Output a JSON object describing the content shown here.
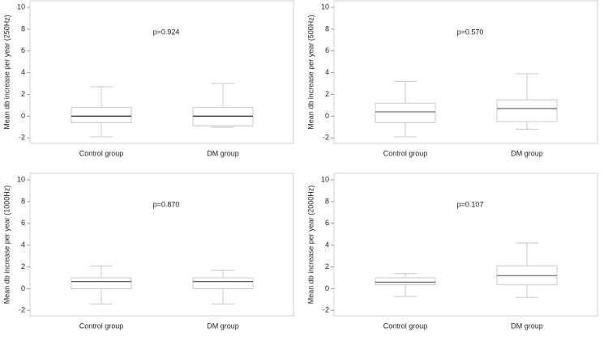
{
  "chart_data": [
    {
      "type": "box",
      "y_label": "Mean db increase per year (250Hz)",
      "annotation": "p=0.924",
      "categories": [
        "Control group",
        "DM group"
      ],
      "boxes": [
        {
          "min": -1.9,
          "q1": -0.6,
          "median": 0,
          "q3": 0.8,
          "max": 2.7
        },
        {
          "min": -1.0,
          "q1": -0.9,
          "median": 0,
          "q3": 0.8,
          "max": 3.0
        }
      ],
      "ylim": [
        -2.5,
        10.6
      ],
      "yticks": [
        -2,
        0,
        2,
        4,
        6,
        8,
        10
      ],
      "box_color": "#c8c8c8",
      "median_color": "#222222"
    },
    {
      "type": "box",
      "y_label": "Mean db increase per year (500Hz)",
      "annotation": "p=0.570",
      "categories": [
        "Control group",
        "DM group"
      ],
      "boxes": [
        {
          "min": -1.9,
          "q1": -0.6,
          "median": 0.4,
          "q3": 1.2,
          "max": 3.2
        },
        {
          "min": -1.2,
          "q1": -0.5,
          "median": 0.7,
          "q3": 1.5,
          "max": 3.9
        }
      ],
      "ylim": [
        -2.5,
        10.6
      ],
      "yticks": [
        -2,
        0,
        2,
        4,
        6,
        8,
        10
      ],
      "box_color": "#c8c8c8",
      "median_color": "#666666"
    },
    {
      "type": "box",
      "y_label": "Mean db increase per year (1000Hz)",
      "annotation": "p=0.870",
      "categories": [
        "Control group",
        "DM group"
      ],
      "boxes": [
        {
          "min": -1.4,
          "q1": 0,
          "median": 0.65,
          "q3": 1.0,
          "max": 2.1
        },
        {
          "min": -1.4,
          "q1": 0,
          "median": 0.65,
          "q3": 1.0,
          "max": 1.7
        }
      ],
      "ylim": [
        -2.5,
        10.6
      ],
      "yticks": [
        -2,
        0,
        2,
        4,
        6,
        8,
        10
      ],
      "box_color": "#c8c8c8",
      "median_color": "#444444"
    },
    {
      "type": "box",
      "y_label": "Mean db increase per year (2000Hz)",
      "annotation": "p=0.107",
      "categories": [
        "Control group",
        "DM group"
      ],
      "boxes": [
        {
          "min": -0.7,
          "q1": 0.35,
          "median": 0.6,
          "q3": 1.0,
          "max": 1.4
        },
        {
          "min": -0.8,
          "q1": 0.35,
          "median": 1.2,
          "q3": 2.1,
          "max": 4.2
        }
      ],
      "ylim": [
        -2.5,
        10.6
      ],
      "yticks": [
        -2,
        0,
        2,
        4,
        6,
        8,
        10
      ],
      "box_color": "#c8c8c8",
      "median_color": "#666666"
    }
  ]
}
